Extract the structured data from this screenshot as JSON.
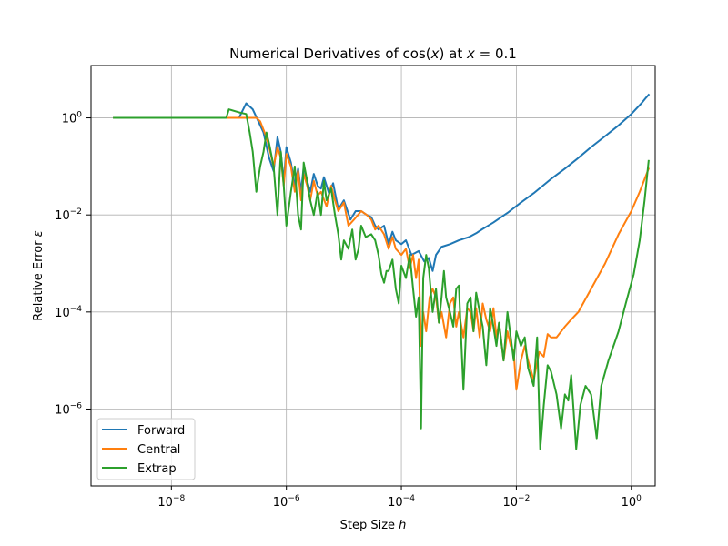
{
  "chart_data": {
    "type": "line",
    "title": "Numerical Derivatives of cos(x) at x = 0.1",
    "title_parts": {
      "prefix": "Numerical Derivatives of cos(",
      "var1": "x",
      "middle": ") at ",
      "var2": "x",
      "eq": " = 0.1"
    },
    "xlabel": "Step Size h",
    "xlabel_parts": {
      "text": "Step Size ",
      "var": "h"
    },
    "ylabel": "Relative Error ε",
    "ylabel_parts": {
      "text": "Relative Error ",
      "var": "ε"
    },
    "xscale": "log",
    "yscale": "log",
    "xlim": [
      4e-10,
      2.6
    ],
    "ylim": [
      2.6e-08,
      12
    ],
    "grid": true,
    "legend_position": "lower-left",
    "x_ticks": [
      {
        "value": 1e-08,
        "base": "10",
        "exp": "−8"
      },
      {
        "value": 1e-06,
        "base": "10",
        "exp": "−6"
      },
      {
        "value": 0.0001,
        "base": "10",
        "exp": "−4"
      },
      {
        "value": 0.01,
        "base": "10",
        "exp": "−2"
      },
      {
        "value": 1,
        "base": "10",
        "exp": "0"
      }
    ],
    "y_ticks": [
      {
        "value": 1e-06,
        "base": "10",
        "exp": "−6"
      },
      {
        "value": 0.0001,
        "base": "10",
        "exp": "−4"
      },
      {
        "value": 0.01,
        "base": "10",
        "exp": "−2"
      },
      {
        "value": 1,
        "base": "10",
        "exp": "0"
      }
    ],
    "series": [
      {
        "name": "Forward",
        "color": "#1f77b4",
        "points": [
          [
            1e-09,
            1.0
          ],
          [
            1e-08,
            1.0
          ],
          [
            1.5e-07,
            1.0
          ],
          [
            2e-07,
            2.0
          ],
          [
            2.6e-07,
            1.5
          ],
          [
            4e-07,
            0.5
          ],
          [
            5e-07,
            0.15
          ],
          [
            6e-07,
            0.08
          ],
          [
            7e-07,
            0.4
          ],
          [
            8e-07,
            0.2
          ],
          [
            9e-07,
            0.05
          ],
          [
            1e-06,
            0.25
          ],
          [
            1.2e-06,
            0.12
          ],
          [
            1.4e-06,
            0.04
          ],
          [
            1.6e-06,
            0.09
          ],
          [
            1.8e-06,
            0.03
          ],
          [
            2e-06,
            0.1
          ],
          [
            2.3e-06,
            0.05
          ],
          [
            2.6e-06,
            0.03
          ],
          [
            3e-06,
            0.07
          ],
          [
            3.5e-06,
            0.04
          ],
          [
            4e-06,
            0.035
          ],
          [
            4.5e-06,
            0.06
          ],
          [
            5.5e-06,
            0.028
          ],
          [
            6.5e-06,
            0.045
          ],
          [
            8e-06,
            0.013
          ],
          [
            1e-05,
            0.02
          ],
          [
            1.3e-05,
            0.008
          ],
          [
            1.6e-05,
            0.012
          ],
          [
            2e-05,
            0.012
          ],
          [
            2.5e-05,
            0.01
          ],
          [
            3e-05,
            0.009
          ],
          [
            3.5e-05,
            0.006
          ],
          [
            4e-05,
            0.005
          ],
          [
            5e-05,
            0.006
          ],
          [
            6e-05,
            0.0025
          ],
          [
            7e-05,
            0.0045
          ],
          [
            8e-05,
            0.003
          ],
          [
            0.0001,
            0.0025
          ],
          [
            0.00012,
            0.003
          ],
          [
            0.00015,
            0.0015
          ],
          [
            0.0002,
            0.0018
          ],
          [
            0.00025,
            0.0011
          ],
          [
            0.0003,
            0.0013
          ],
          [
            0.00035,
            0.0007
          ],
          [
            0.0004,
            0.0015
          ],
          [
            0.0005,
            0.0022
          ],
          [
            0.0007,
            0.0025
          ],
          [
            0.001,
            0.003
          ],
          [
            0.0015,
            0.0035
          ],
          [
            0.002,
            0.0042
          ],
          [
            0.0025,
            0.005
          ],
          [
            0.004,
            0.007
          ],
          [
            0.007,
            0.011
          ],
          [
            0.012,
            0.018
          ],
          [
            0.02,
            0.028
          ],
          [
            0.04,
            0.055
          ],
          [
            0.07,
            0.09
          ],
          [
            0.12,
            0.15
          ],
          [
            0.2,
            0.25
          ],
          [
            0.35,
            0.42
          ],
          [
            0.6,
            0.7
          ],
          [
            1.0,
            1.2
          ],
          [
            1.5,
            2.0
          ],
          [
            1.8,
            2.6
          ],
          [
            2.0,
            3.0
          ]
        ]
      },
      {
        "name": "Central",
        "color": "#ff7f0e",
        "points": [
          [
            1e-09,
            1.0
          ],
          [
            1e-08,
            1.0
          ],
          [
            2e-07,
            1.0
          ],
          [
            3e-07,
            1.0
          ],
          [
            3.5e-07,
            0.85
          ],
          [
            4.5e-07,
            0.4
          ],
          [
            5e-07,
            0.25
          ],
          [
            6e-07,
            0.1
          ],
          [
            7e-07,
            0.25
          ],
          [
            8e-07,
            0.15
          ],
          [
            9e-07,
            0.04
          ],
          [
            1e-06,
            0.18
          ],
          [
            1.2e-06,
            0.1
          ],
          [
            1.4e-06,
            0.03
          ],
          [
            1.6e-06,
            0.08
          ],
          [
            1.8e-06,
            0.02
          ],
          [
            2e-06,
            0.07
          ],
          [
            2.3e-06,
            0.04
          ],
          [
            2.6e-06,
            0.02
          ],
          [
            3e-06,
            0.05
          ],
          [
            3.5e-06,
            0.025
          ],
          [
            4e-06,
            0.03
          ],
          [
            5e-06,
            0.015
          ],
          [
            6e-06,
            0.04
          ],
          [
            7e-06,
            0.02
          ],
          [
            8e-06,
            0.012
          ],
          [
            1e-05,
            0.018
          ],
          [
            1.2e-05,
            0.006
          ],
          [
            1.5e-05,
            0.008
          ],
          [
            2e-05,
            0.012
          ],
          [
            2.5e-05,
            0.01
          ],
          [
            3e-05,
            0.008
          ],
          [
            3.5e-05,
            0.005
          ],
          [
            4e-05,
            0.006
          ],
          [
            5e-05,
            0.004
          ],
          [
            6e-05,
            0.002
          ],
          [
            7e-05,
            0.0035
          ],
          [
            8e-05,
            0.002
          ],
          [
            0.0001,
            0.0015
          ],
          [
            0.00012,
            0.002
          ],
          [
            0.00014,
            0.0008
          ],
          [
            0.00016,
            0.0015
          ],
          [
            0.00018,
            0.0005
          ],
          [
            0.0002,
            0.0012
          ],
          [
            0.00022,
            2e-05
          ],
          [
            0.00024,
            0.0001
          ],
          [
            0.00027,
            4e-05
          ],
          [
            0.00031,
            0.0002
          ],
          [
            0.00035,
            0.0003
          ],
          [
            0.0004,
            0.0002
          ],
          [
            0.00045,
            6e-05
          ],
          [
            0.0005,
            0.0001
          ],
          [
            0.0006,
            3e-05
          ],
          [
            0.0007,
            0.00015
          ],
          [
            0.0008,
            0.0002
          ],
          [
            0.0009,
            5e-05
          ],
          [
            0.001,
            0.0001
          ],
          [
            0.0012,
            3e-05
          ],
          [
            0.0014,
            0.00012
          ],
          [
            0.0016,
            0.0001
          ],
          [
            0.0018,
            4e-05
          ],
          [
            0.002,
            0.00012
          ],
          [
            0.0023,
            3e-05
          ],
          [
            0.0026,
            0.00015
          ],
          [
            0.003,
            7e-05
          ],
          [
            0.0035,
            4e-05
          ],
          [
            0.004,
            0.00012
          ],
          [
            0.0045,
            3e-05
          ],
          [
            0.005,
            6e-05
          ],
          [
            0.006,
            1e-05
          ],
          [
            0.007,
            4e-05
          ],
          [
            0.008,
            2e-05
          ],
          [
            0.009,
            1.5e-05
          ],
          [
            0.01,
            2.5e-06
          ],
          [
            0.012,
            1e-05
          ],
          [
            0.014,
            2e-05
          ],
          [
            0.016,
            1e-05
          ],
          [
            0.02,
            4e-06
          ],
          [
            0.025,
            1.5e-05
          ],
          [
            0.03,
            1.2e-05
          ],
          [
            0.035,
            3.5e-05
          ],
          [
            0.04,
            3e-05
          ],
          [
            0.05,
            3e-05
          ],
          [
            0.07,
            5e-05
          ],
          [
            0.09,
            7e-05
          ],
          [
            0.12,
            0.0001
          ],
          [
            0.2,
            0.0003
          ],
          [
            0.35,
            0.001
          ],
          [
            0.6,
            0.004
          ],
          [
            1.0,
            0.012
          ],
          [
            1.4,
            0.03
          ],
          [
            2.0,
            0.09
          ]
        ]
      },
      {
        "name": "Extrap",
        "color": "#2ca02c",
        "points": [
          [
            1e-09,
            1.0
          ],
          [
            1e-08,
            1.0
          ],
          [
            9e-08,
            1.0
          ],
          [
            1e-07,
            1.5
          ],
          [
            1.5e-07,
            1.3
          ],
          [
            2e-07,
            1.2
          ],
          [
            2.3e-07,
            0.5
          ],
          [
            2.6e-07,
            0.2
          ],
          [
            3e-07,
            0.03
          ],
          [
            3.5e-07,
            0.1
          ],
          [
            4e-07,
            0.2
          ],
          [
            4.5e-07,
            0.5
          ],
          [
            5e-07,
            0.3
          ],
          [
            6e-07,
            0.1
          ],
          [
            7e-07,
            0.01
          ],
          [
            8e-07,
            0.2
          ],
          [
            9e-07,
            0.04
          ],
          [
            1e-06,
            0.006
          ],
          [
            1.2e-06,
            0.03
          ],
          [
            1.4e-06,
            0.1
          ],
          [
            1.6e-06,
            0.01
          ],
          [
            1.8e-06,
            0.005
          ],
          [
            2e-06,
            0.12
          ],
          [
            2.3e-06,
            0.05
          ],
          [
            2.6e-06,
            0.02
          ],
          [
            3e-06,
            0.01
          ],
          [
            3.5e-06,
            0.03
          ],
          [
            4e-06,
            0.01
          ],
          [
            4.5e-06,
            0.05
          ],
          [
            5e-06,
            0.02
          ],
          [
            6e-06,
            0.035
          ],
          [
            7e-06,
            0.01
          ],
          [
            8e-06,
            0.004
          ],
          [
            9e-06,
            0.0012
          ],
          [
            1e-05,
            0.003
          ],
          [
            1.2e-05,
            0.002
          ],
          [
            1.4e-05,
            0.005
          ],
          [
            1.6e-05,
            0.0012
          ],
          [
            1.8e-05,
            0.002
          ],
          [
            2e-05,
            0.006
          ],
          [
            2.4e-05,
            0.0035
          ],
          [
            3e-05,
            0.004
          ],
          [
            3.5e-05,
            0.003
          ],
          [
            4e-05,
            0.0015
          ],
          [
            4.5e-05,
            0.0006
          ],
          [
            5e-05,
            0.0004
          ],
          [
            5.5e-05,
            0.0007
          ],
          [
            6e-05,
            0.0007
          ],
          [
            7e-05,
            0.0012
          ],
          [
            8e-05,
            0.0003
          ],
          [
            9e-05,
            0.00015
          ],
          [
            0.0001,
            0.0009
          ],
          [
            0.00012,
            0.0005
          ],
          [
            0.00014,
            0.0015
          ],
          [
            0.00016,
            0.0003
          ],
          [
            0.00018,
            8e-05
          ],
          [
            0.0002,
            0.0002
          ],
          [
            0.00022,
            4e-07
          ],
          [
            0.00024,
            0.0005
          ],
          [
            0.00027,
            0.0015
          ],
          [
            0.0003,
            0.0008
          ],
          [
            0.00035,
            0.0001
          ],
          [
            0.0004,
            0.0003
          ],
          [
            0.00045,
            6e-05
          ],
          [
            0.0005,
            0.0002
          ],
          [
            0.00055,
            0.0007
          ],
          [
            0.0006,
            0.0002
          ],
          [
            0.0007,
            0.0001
          ],
          [
            0.0008,
            5e-05
          ],
          [
            0.0009,
            0.0003
          ],
          [
            0.001,
            0.00035
          ],
          [
            0.0012,
            2.5e-06
          ],
          [
            0.0014,
            0.00015
          ],
          [
            0.0016,
            0.0002
          ],
          [
            0.0018,
            4e-05
          ],
          [
            0.002,
            0.00025
          ],
          [
            0.0023,
            0.0001
          ],
          [
            0.0026,
            5e-05
          ],
          [
            0.003,
            8e-06
          ],
          [
            0.0035,
            0.00012
          ],
          [
            0.004,
            5e-05
          ],
          [
            0.0045,
            2e-05
          ],
          [
            0.005,
            6e-05
          ],
          [
            0.006,
            1e-05
          ],
          [
            0.007,
            0.0001
          ],
          [
            0.008,
            3e-05
          ],
          [
            0.009,
            1e-05
          ],
          [
            0.01,
            4e-05
          ],
          [
            0.012,
            2e-05
          ],
          [
            0.014,
            3e-05
          ],
          [
            0.016,
            7e-06
          ],
          [
            0.02,
            3e-06
          ],
          [
            0.023,
            3e-05
          ],
          [
            0.026,
            1.5e-07
          ],
          [
            0.03,
            1.2e-06
          ],
          [
            0.035,
            8e-06
          ],
          [
            0.04,
            6e-06
          ],
          [
            0.05,
            2e-06
          ],
          [
            0.06,
            4e-07
          ],
          [
            0.07,
            2e-06
          ],
          [
            0.08,
            1.5e-06
          ],
          [
            0.09,
            5e-06
          ],
          [
            0.11,
            1.5e-07
          ],
          [
            0.13,
            1.2e-06
          ],
          [
            0.16,
            3e-06
          ],
          [
            0.2,
            2e-06
          ],
          [
            0.25,
            2.5e-07
          ],
          [
            0.3,
            3e-06
          ],
          [
            0.4,
            1e-05
          ],
          [
            0.6,
            4e-05
          ],
          [
            0.8,
            0.00015
          ],
          [
            1.1,
            0.0006
          ],
          [
            1.4,
            0.003
          ],
          [
            1.7,
            0.02
          ],
          [
            2.0,
            0.13
          ]
        ]
      }
    ]
  }
}
